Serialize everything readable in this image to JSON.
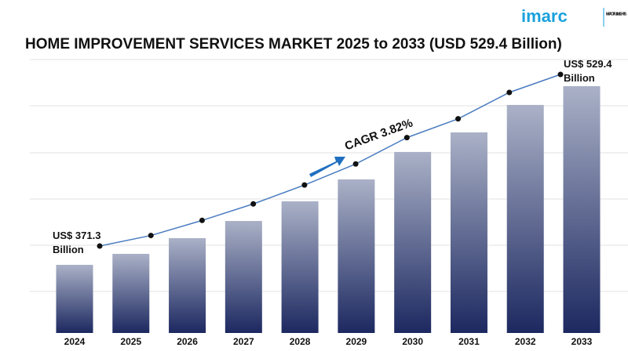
{
  "logo": {
    "name": "imarc",
    "tagline": "IMPACTFUL INSIGHTS"
  },
  "chart_data": {
    "type": "bar",
    "title": "HOME IMPROVEMENT SERVICES MARKET 2025 to 2033 (USD 529.4 Billion)",
    "annotation": "CAGR 3.82%",
    "categories": [
      "2024",
      "2025",
      "2026",
      "2027",
      "2028",
      "2029",
      "2030",
      "2031",
      "2032",
      "2033"
    ],
    "values": [
      371.3,
      381.0,
      394.9,
      410.1,
      427.5,
      446.9,
      471.2,
      488.5,
      512.8,
      529.4
    ],
    "value_labels": [
      "US$ 371.3 Billion",
      null,
      null,
      null,
      null,
      null,
      null,
      null,
      null,
      "US$ 529.4 Billion"
    ],
    "bar_color_top": "#aab1c7",
    "bar_color_bottom": "#1c2860",
    "line_color": "#4a7cc0"
  }
}
